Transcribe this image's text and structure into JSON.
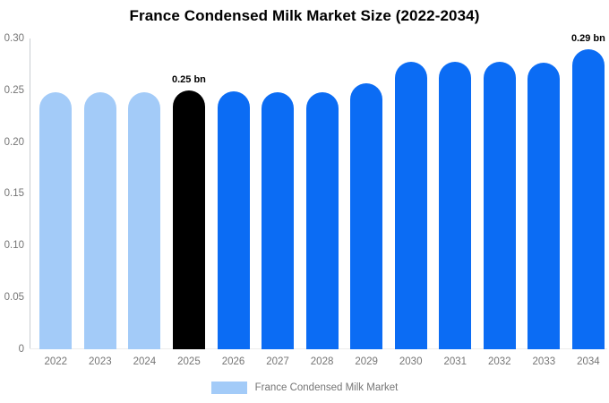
{
  "chart_data": {
    "type": "bar",
    "title": "France Condensed Milk Market Size (2022-2034)",
    "unit": "bn",
    "categories": [
      "2022",
      "2023",
      "2024",
      "2025",
      "2026",
      "2027",
      "2028",
      "2029",
      "2030",
      "2031",
      "2032",
      "2033",
      "2034"
    ],
    "values": [
      0.248,
      0.248,
      0.248,
      0.25,
      0.249,
      0.248,
      0.248,
      0.257,
      0.278,
      0.278,
      0.278,
      0.277,
      0.29
    ],
    "point_labels": [
      "",
      "",
      "",
      "0.25 bn",
      "",
      "",
      "",
      "",
      "",
      "",
      "",
      "",
      "0.29 bn"
    ],
    "segments": [
      "historical",
      "historical",
      "historical",
      "base",
      "forecast",
      "forecast",
      "forecast",
      "forecast",
      "forecast",
      "forecast",
      "forecast",
      "forecast",
      "forecast"
    ],
    "colors": {
      "historical": "#a3cbf8",
      "base": "#000000",
      "forecast": "#0b6cf4"
    },
    "ylim": [
      0,
      0.3
    ],
    "yticks": [
      "0.30",
      "0.25",
      "0.20",
      "0.15",
      "0.10",
      "0.05",
      "0"
    ],
    "grid": false,
    "xlabel": "",
    "ylabel": "",
    "legend_position": "bottom",
    "legend": [
      {
        "label": "France Condensed Milk Market",
        "color": "#a3cbf8"
      }
    ],
    "text_colors": {
      "title": "#000000",
      "axis_labels": "#757575",
      "point_labels": "#000000"
    }
  }
}
